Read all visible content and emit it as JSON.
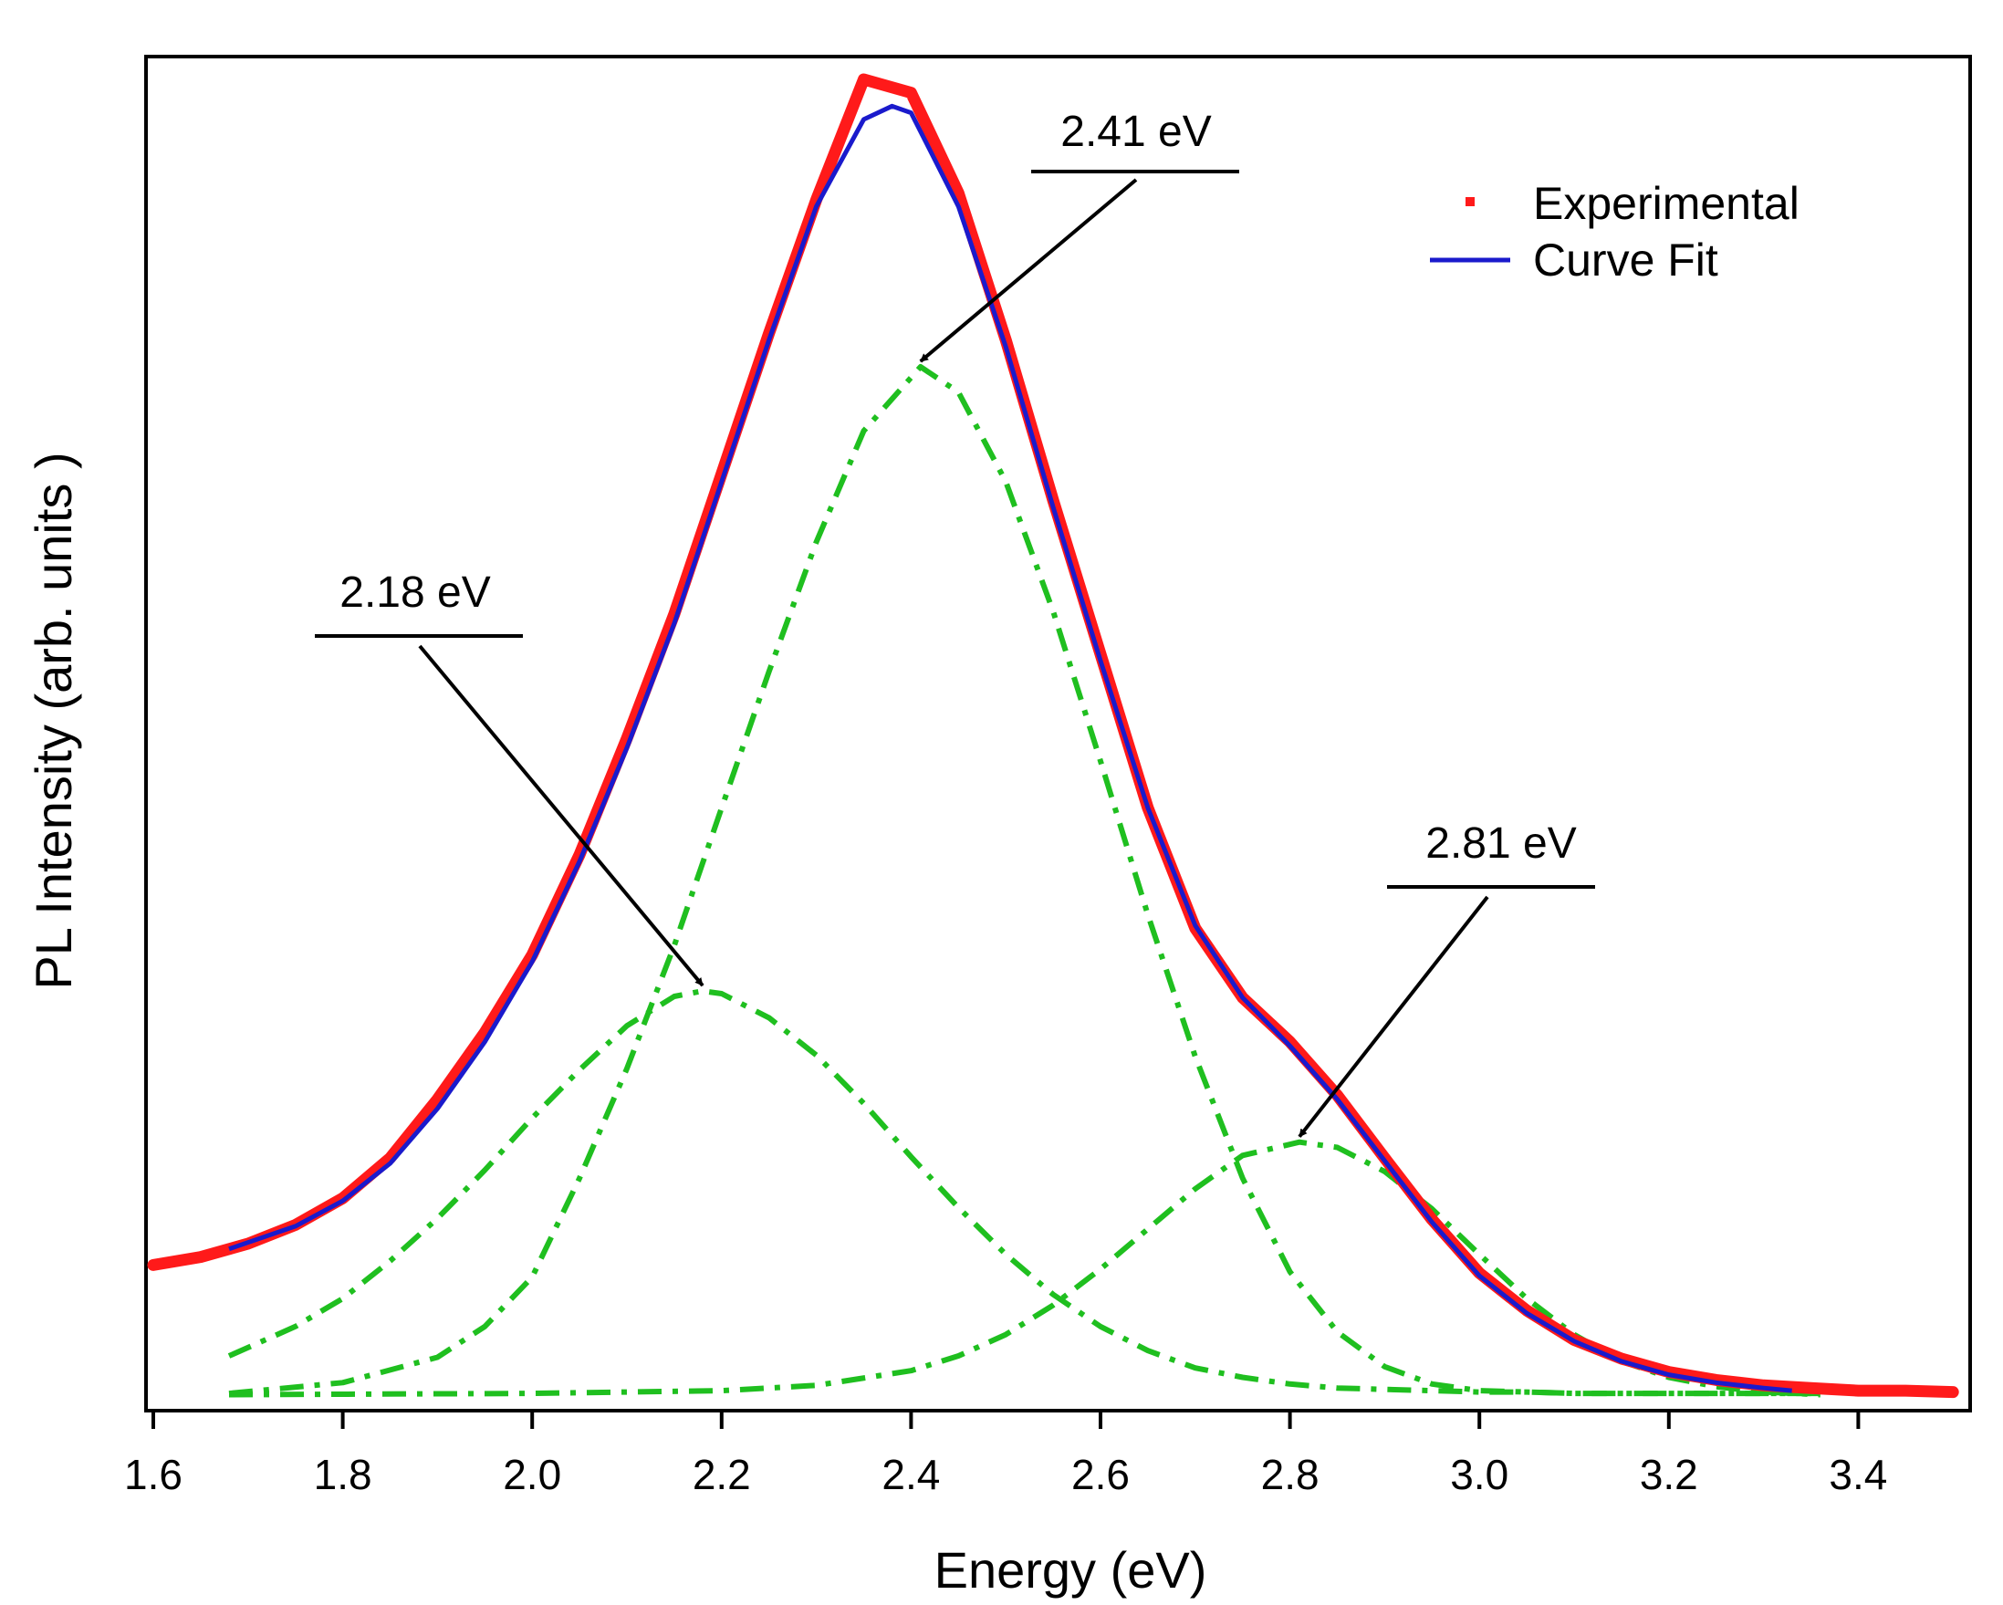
{
  "chart_data": {
    "type": "line",
    "title": "",
    "xlabel": "Energy (eV)",
    "ylabel": "PL Intensity (arb. units )",
    "xlim": [
      1.6,
      3.5
    ],
    "ylim": [
      0,
      1.0
    ],
    "xticks": [
      1.6,
      1.8,
      2.0,
      2.2,
      2.4,
      2.6,
      2.8,
      3.0,
      3.2,
      3.4
    ],
    "xtick_labels": [
      "1.6",
      "1.8",
      "2.0",
      "2.2",
      "2.4",
      "2.6",
      "2.8",
      "3.0",
      "3.2",
      "3.4"
    ],
    "grid": false,
    "legend_position": "top-right",
    "colors": {
      "experimental": "#ff1a1a",
      "fit": "#1a1acc",
      "components": "#1fbf1f",
      "annotation": "#000000"
    },
    "series": [
      {
        "name": "Experimental",
        "style": "points",
        "x": [
          1.6,
          1.65,
          1.7,
          1.75,
          1.8,
          1.85,
          1.9,
          1.95,
          2.0,
          2.05,
          2.1,
          2.15,
          2.2,
          2.25,
          2.3,
          2.35,
          2.4,
          2.45,
          2.5,
          2.55,
          2.6,
          2.65,
          2.7,
          2.75,
          2.8,
          2.85,
          2.9,
          2.95,
          3.0,
          3.05,
          3.1,
          3.15,
          3.2,
          3.25,
          3.3,
          3.35,
          3.4,
          3.45,
          3.5
        ],
        "y": [
          0.098,
          0.104,
          0.114,
          0.128,
          0.148,
          0.178,
          0.222,
          0.272,
          0.33,
          0.405,
          0.492,
          0.585,
          0.69,
          0.795,
          0.895,
          0.985,
          0.975,
          0.9,
          0.79,
          0.67,
          0.555,
          0.44,
          0.35,
          0.298,
          0.265,
          0.225,
          0.178,
          0.132,
          0.092,
          0.064,
          0.042,
          0.028,
          0.018,
          0.012,
          0.008,
          0.006,
          0.004,
          0.004,
          0.003
        ]
      },
      {
        "name": "Curve Fit",
        "style": "line",
        "x": [
          1.68,
          1.75,
          1.8,
          1.85,
          1.9,
          1.95,
          2.0,
          2.05,
          2.1,
          2.15,
          2.2,
          2.25,
          2.3,
          2.35,
          2.38,
          2.4,
          2.45,
          2.5,
          2.55,
          2.6,
          2.65,
          2.7,
          2.75,
          2.8,
          2.85,
          2.9,
          2.95,
          3.0,
          3.05,
          3.1,
          3.15,
          3.2,
          3.25,
          3.3,
          3.33
        ],
        "y": [
          0.11,
          0.127,
          0.146,
          0.174,
          0.215,
          0.265,
          0.325,
          0.4,
          0.485,
          0.578,
          0.684,
          0.79,
          0.89,
          0.955,
          0.965,
          0.96,
          0.89,
          0.785,
          0.665,
          0.55,
          0.44,
          0.352,
          0.298,
          0.262,
          0.222,
          0.176,
          0.13,
          0.09,
          0.062,
          0.041,
          0.026,
          0.016,
          0.01,
          0.006,
          0.004
        ]
      },
      {
        "name": "Peak 2.18 eV",
        "style": "dashdot",
        "x": [
          1.68,
          1.75,
          1.8,
          1.85,
          1.9,
          1.95,
          2.0,
          2.05,
          2.1,
          2.15,
          2.18,
          2.2,
          2.25,
          2.3,
          2.35,
          2.4,
          2.45,
          2.5,
          2.55,
          2.6,
          2.65,
          2.7,
          2.75,
          2.8,
          2.85,
          2.9,
          2.95,
          3.0,
          3.05,
          3.1,
          3.15,
          3.2,
          3.25,
          3.3,
          3.36
        ],
        "y": [
          0.03,
          0.052,
          0.073,
          0.101,
          0.133,
          0.169,
          0.208,
          0.244,
          0.277,
          0.299,
          0.303,
          0.301,
          0.283,
          0.255,
          0.219,
          0.179,
          0.141,
          0.106,
          0.076,
          0.052,
          0.034,
          0.021,
          0.014,
          0.009,
          0.006,
          0.005,
          0.004,
          0.003,
          0.003,
          0.002,
          0.002,
          0.002,
          0.002,
          0.002,
          0.002
        ]
      },
      {
        "name": "Peak 2.41 eV",
        "style": "dashdot",
        "x": [
          1.68,
          1.8,
          1.9,
          1.95,
          2.0,
          2.05,
          2.1,
          2.15,
          2.2,
          2.25,
          2.3,
          2.35,
          2.41,
          2.45,
          2.5,
          2.55,
          2.6,
          2.65,
          2.7,
          2.75,
          2.8,
          2.85,
          2.9,
          2.95,
          3.0,
          3.1,
          3.2,
          3.36
        ],
        "y": [
          0.002,
          0.01,
          0.029,
          0.052,
          0.089,
          0.163,
          0.245,
          0.337,
          0.44,
          0.542,
          0.639,
          0.722,
          0.77,
          0.751,
          0.684,
          0.587,
          0.475,
          0.36,
          0.254,
          0.163,
          0.093,
          0.048,
          0.022,
          0.009,
          0.004,
          0.002,
          0.002,
          0.002
        ]
      },
      {
        "name": "Peak 2.81 eV",
        "style": "dashdot",
        "x": [
          1.68,
          2.0,
          2.2,
          2.3,
          2.4,
          2.45,
          2.5,
          2.55,
          2.6,
          2.65,
          2.7,
          2.75,
          2.81,
          2.85,
          2.9,
          2.95,
          3.0,
          3.05,
          3.1,
          3.15,
          3.2,
          3.25,
          3.3,
          3.36
        ],
        "y": [
          0.001,
          0.002,
          0.004,
          0.008,
          0.019,
          0.03,
          0.046,
          0.068,
          0.095,
          0.125,
          0.155,
          0.18,
          0.19,
          0.186,
          0.168,
          0.14,
          0.106,
          0.073,
          0.046,
          0.026,
          0.014,
          0.007,
          0.003,
          0.001
        ]
      }
    ],
    "annotations": [
      {
        "text": "2.18 eV",
        "peak_x": 2.18,
        "peak_y": 0.303
      },
      {
        "text": "2.41 eV",
        "peak_x": 2.41,
        "peak_y": 0.77
      },
      {
        "text": "2.81 eV",
        "peak_x": 2.81,
        "peak_y": 0.19
      }
    ]
  }
}
